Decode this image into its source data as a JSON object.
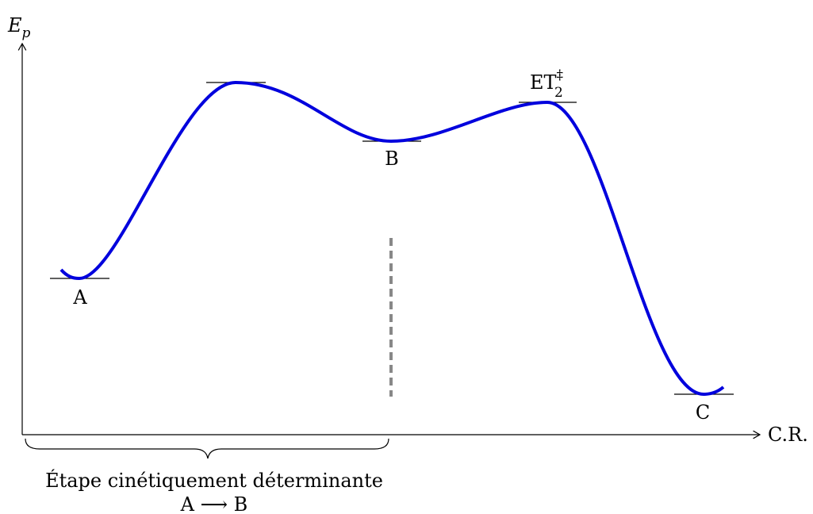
{
  "diagram": {
    "y_axis_label": {
      "base": "E",
      "sub": "p"
    },
    "x_axis_label": "C.R.",
    "points": {
      "A": "A",
      "B": "B",
      "C": "C",
      "ts2": {
        "base": "ET",
        "sub": "2",
        "sup": "‡"
      }
    },
    "brace_label": "Étape cinétiquement déterminante",
    "brace_reaction": "A ⟶ B"
  }
}
